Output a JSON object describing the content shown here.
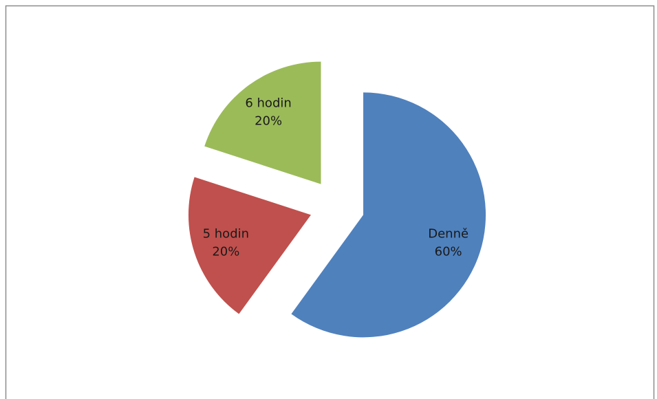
{
  "chart_data": {
    "type": "pie",
    "categories": [
      "Denně",
      "5 hodin",
      "6 hodin"
    ],
    "values": [
      60,
      20,
      20
    ],
    "value_labels": [
      "60%",
      "20%",
      "20%"
    ],
    "colors": [
      "#4f81bd",
      "#c0504d",
      "#9bbb59"
    ],
    "exploded": true
  }
}
